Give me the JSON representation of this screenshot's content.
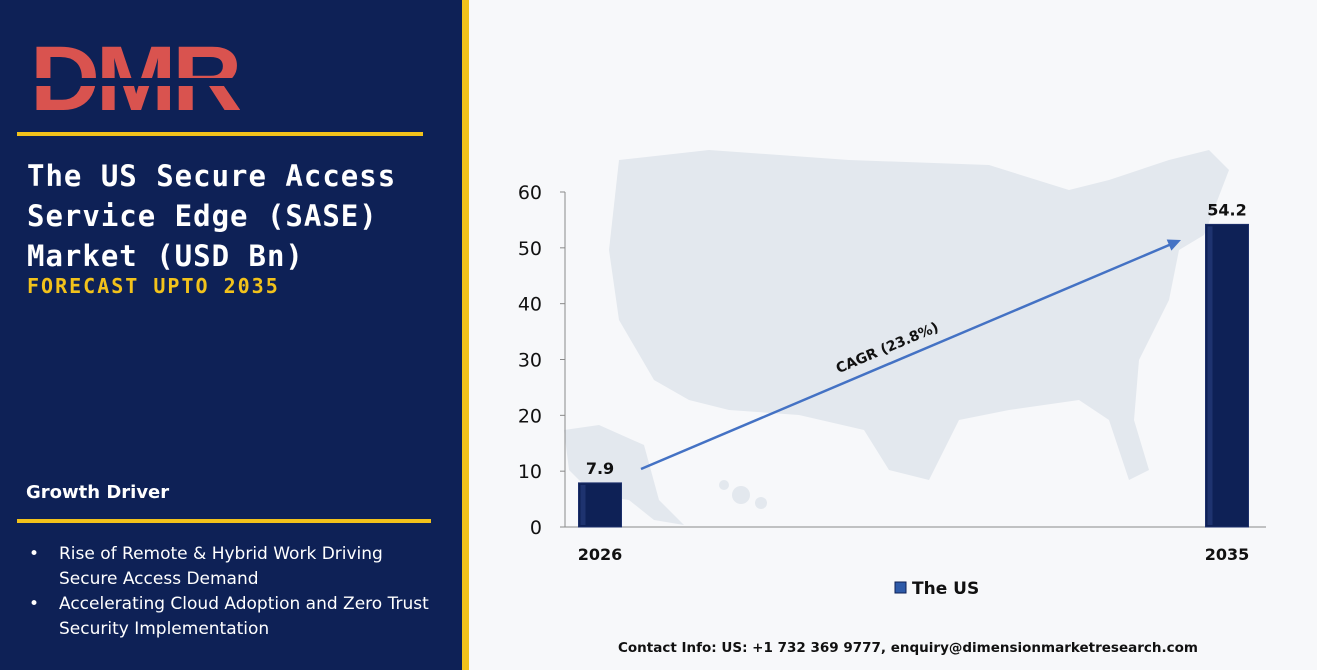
{
  "brand": {
    "logo_text": "DMR"
  },
  "header": {
    "title": "The US Secure Access Service Edge (SASE) Market (USD Bn)",
    "subtitle": "FORECAST UPTO 2035"
  },
  "growth_driver": {
    "heading": "Growth Driver",
    "items": [
      "Rise of Remote & Hybrid Work Driving Secure Access Demand",
      "Accelerating Cloud Adoption and Zero Trust Security Implementation"
    ]
  },
  "contact": "Contact Info: US: +1 732 369 9777, enquiry@dimensionmarketresearch.com",
  "colors": {
    "panel": "#0e2156",
    "accent": "#f2c21b",
    "bar": "#0e2156",
    "trend_arrow": "#4472c4",
    "logo_red": "#d9534f",
    "logo_grey": "#c7c9c8"
  },
  "chart_data": {
    "type": "bar",
    "categories": [
      "2026",
      "2035"
    ],
    "series": [
      {
        "name": "The US",
        "values": [
          7.9,
          54.2
        ]
      }
    ],
    "data_labels": [
      "7.9",
      "54.2"
    ],
    "ylim": [
      0,
      60
    ],
    "yticks": [
      0,
      10,
      20,
      30,
      40,
      50,
      60
    ],
    "annotation": "CAGR (23.8%)",
    "legend_position": "bottom",
    "grid": false,
    "background_image": "us-map"
  }
}
